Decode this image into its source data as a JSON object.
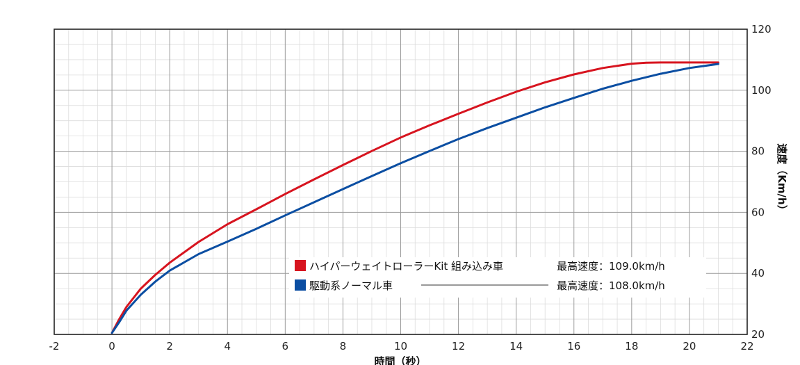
{
  "chart_data": {
    "type": "line",
    "xlabel": "時間（秒）",
    "ylabel": "速度（Km/h）",
    "xlim": [
      -2,
      22
    ],
    "ylim": [
      20,
      120
    ],
    "x_ticks": [
      "-2",
      "0",
      "2",
      "4",
      "6",
      "8",
      "10",
      "12",
      "14",
      "16",
      "18",
      "20",
      "22"
    ],
    "y_ticks": [
      {
        "value": 20,
        "label": "20"
      },
      {
        "value": 40,
        "label": "40"
      },
      {
        "value": 60,
        "label": "60"
      },
      {
        "value": 80,
        "label": "80"
      },
      {
        "value": 100,
        "label": "100"
      },
      {
        "value": 120,
        "label": "120"
      }
    ],
    "y_axis_position": "right",
    "grid": true,
    "legend_position": "bottom-center",
    "series": [
      {
        "name": "ハイパーウェイトローラーKit 組み込み車",
        "note": "最高速度：109.0km/h",
        "color": "#d7141f",
        "points": [
          [
            0,
            20.5
          ],
          [
            0.25,
            25
          ],
          [
            0.5,
            29
          ],
          [
            1,
            35
          ],
          [
            1.5,
            39.5
          ],
          [
            2,
            43.5
          ],
          [
            3,
            50.3
          ],
          [
            4,
            56.1
          ],
          [
            5,
            61
          ],
          [
            6,
            66
          ],
          [
            7,
            70.8
          ],
          [
            8,
            75.5
          ],
          [
            9,
            80.1
          ],
          [
            10,
            84.5
          ],
          [
            11,
            88.5
          ],
          [
            12,
            92.3
          ],
          [
            13,
            96
          ],
          [
            14,
            99.5
          ],
          [
            15,
            102.6
          ],
          [
            16,
            105.2
          ],
          [
            17,
            107.3
          ],
          [
            18,
            108.7
          ],
          [
            18.5,
            109
          ],
          [
            19,
            109.1
          ],
          [
            20,
            109.1
          ],
          [
            21,
            109.1
          ]
        ]
      },
      {
        "name": "駆動系ノーマル車",
        "note": "最高速度：108.0km/h",
        "color": "#0b4ea2",
        "points": [
          [
            0,
            20.5
          ],
          [
            0.25,
            24
          ],
          [
            0.5,
            27.8
          ],
          [
            1,
            33
          ],
          [
            1.5,
            37.3
          ],
          [
            2,
            40.9
          ],
          [
            3,
            46.3
          ],
          [
            4,
            50.4
          ],
          [
            5,
            54.6
          ],
          [
            6,
            59
          ],
          [
            7,
            63.3
          ],
          [
            8,
            67.6
          ],
          [
            9,
            71.9
          ],
          [
            10,
            76.1
          ],
          [
            11,
            80.1
          ],
          [
            12,
            84
          ],
          [
            13,
            87.6
          ],
          [
            14,
            91
          ],
          [
            15,
            94.4
          ],
          [
            16,
            97.5
          ],
          [
            17,
            100.5
          ],
          [
            18,
            103.1
          ],
          [
            19,
            105.4
          ],
          [
            20,
            107.3
          ],
          [
            21,
            108.6
          ]
        ]
      }
    ]
  }
}
